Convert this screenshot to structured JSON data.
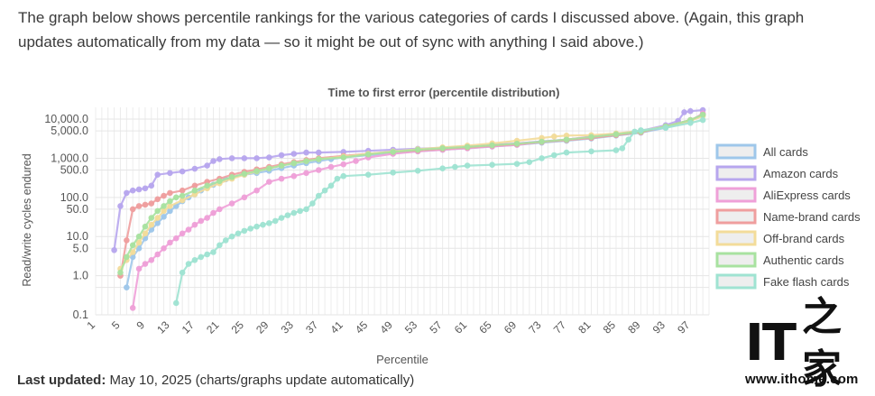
{
  "article": {
    "intro_text": "The graph below shows percentile rankings for the various categories of cards I discussed above. (Again, this graph updates automatically from my data — so it might be out of sync with anything I said above.)",
    "last_updated_label": "Last updated:",
    "last_updated_value": "May 10, 2025 (charts/graphs update automatically)"
  },
  "watermark": {
    "logo_text": "IT之家",
    "url": "www.ithome.com"
  },
  "chart_data": {
    "type": "line",
    "title": "Time to first error (percentile distribution)",
    "xlabel": "Percentile",
    "ylabel": "Read/write cycles endured",
    "y_scale": "log",
    "ylim": [
      0.1,
      20000
    ],
    "y_ticks": [
      "0.1",
      "1.0",
      "5.0",
      "10.0",
      "50.0",
      "100.0",
      "500.0",
      "1,000.0",
      "5,000.0",
      "10,000.0"
    ],
    "x_ticks": [
      "1",
      "5",
      "9",
      "13",
      "17",
      "21",
      "25",
      "29",
      "33",
      "37",
      "41",
      "45",
      "49",
      "53",
      "57",
      "61",
      "65",
      "69",
      "73",
      "77",
      "81",
      "85",
      "89",
      "93",
      "97"
    ],
    "grid": true,
    "legend_position": "right",
    "series": [
      {
        "name": "All cards",
        "color": "#9ec7ea",
        "points": [
          [
            6,
            0.5
          ],
          [
            7,
            3
          ],
          [
            8,
            5
          ],
          [
            9,
            9
          ],
          [
            10,
            15
          ],
          [
            11,
            22
          ],
          [
            12,
            32
          ],
          [
            13,
            45
          ],
          [
            14,
            60
          ],
          [
            15,
            80
          ],
          [
            16,
            100
          ],
          [
            17,
            120
          ],
          [
            18,
            150
          ],
          [
            19,
            180
          ],
          [
            20,
            210
          ],
          [
            21,
            250
          ],
          [
            22,
            290
          ],
          [
            23,
            330
          ],
          [
            25,
            380
          ],
          [
            27,
            420
          ],
          [
            29,
            480
          ],
          [
            31,
            560
          ],
          [
            33,
            650
          ],
          [
            35,
            750
          ],
          [
            37,
            850
          ],
          [
            39,
            950
          ],
          [
            41,
            1050
          ],
          [
            45,
            1200
          ],
          [
            49,
            1350
          ],
          [
            53,
            1500
          ],
          [
            57,
            1650
          ],
          [
            61,
            1800
          ],
          [
            65,
            2000
          ],
          [
            69,
            2200
          ],
          [
            73,
            2500
          ],
          [
            77,
            2800
          ],
          [
            81,
            3200
          ],
          [
            85,
            3800
          ],
          [
            89,
            4500
          ],
          [
            93,
            6000
          ],
          [
            97,
            9000
          ],
          [
            99,
            13000
          ]
        ]
      },
      {
        "name": "Amazon cards",
        "color": "#b7a6ee",
        "points": [
          [
            4,
            4.5
          ],
          [
            5,
            60
          ],
          [
            6,
            130
          ],
          [
            7,
            150
          ],
          [
            8,
            160
          ],
          [
            9,
            170
          ],
          [
            10,
            200
          ],
          [
            11,
            380
          ],
          [
            13,
            420
          ],
          [
            15,
            460
          ],
          [
            17,
            540
          ],
          [
            19,
            650
          ],
          [
            20,
            850
          ],
          [
            21,
            950
          ],
          [
            23,
            1000
          ],
          [
            25,
            1000
          ],
          [
            27,
            1000
          ],
          [
            29,
            1050
          ],
          [
            31,
            1200
          ],
          [
            33,
            1300
          ],
          [
            35,
            1400
          ],
          [
            37,
            1400
          ],
          [
            41,
            1450
          ],
          [
            45,
            1550
          ],
          [
            49,
            1650
          ],
          [
            53,
            1750
          ],
          [
            57,
            1850
          ],
          [
            61,
            2000
          ],
          [
            65,
            2200
          ],
          [
            69,
            2400
          ],
          [
            73,
            2700
          ],
          [
            77,
            3000
          ],
          [
            81,
            3500
          ],
          [
            85,
            4200
          ],
          [
            89,
            5000
          ],
          [
            93,
            7000
          ],
          [
            95,
            9000
          ],
          [
            96,
            15000
          ],
          [
            97,
            16000
          ],
          [
            99,
            17000
          ]
        ]
      },
      {
        "name": "AliExpress cards",
        "color": "#efa0d8",
        "points": [
          [
            7,
            0.15
          ],
          [
            8,
            1.5
          ],
          [
            9,
            2
          ],
          [
            10,
            2.5
          ],
          [
            11,
            3.5
          ],
          [
            12,
            5
          ],
          [
            13,
            7
          ],
          [
            14,
            9
          ],
          [
            15,
            12
          ],
          [
            16,
            15
          ],
          [
            17,
            20
          ],
          [
            18,
            25
          ],
          [
            19,
            30
          ],
          [
            20,
            40
          ],
          [
            21,
            50
          ],
          [
            23,
            70
          ],
          [
            25,
            100
          ],
          [
            27,
            150
          ],
          [
            29,
            250
          ],
          [
            31,
            300
          ],
          [
            33,
            350
          ],
          [
            35,
            420
          ],
          [
            37,
            500
          ],
          [
            39,
            600
          ],
          [
            41,
            700
          ],
          [
            43,
            850
          ],
          [
            45,
            1050
          ],
          [
            49,
            1300
          ],
          [
            53,
            1500
          ],
          [
            57,
            1650
          ],
          [
            61,
            1800
          ],
          [
            65,
            2000
          ],
          [
            69,
            2200
          ],
          [
            73,
            2600
          ],
          [
            77,
            3000
          ],
          [
            81,
            3600
          ],
          [
            85,
            4200
          ],
          [
            89,
            4800
          ],
          [
            93,
            6500
          ],
          [
            97,
            9000
          ],
          [
            99,
            14000
          ]
        ]
      },
      {
        "name": "Name-brand cards",
        "color": "#ef9e9e",
        "points": [
          [
            5,
            1
          ],
          [
            6,
            8
          ],
          [
            7,
            50
          ],
          [
            8,
            60
          ],
          [
            9,
            65
          ],
          [
            10,
            70
          ],
          [
            11,
            90
          ],
          [
            12,
            110
          ],
          [
            13,
            130
          ],
          [
            15,
            150
          ],
          [
            17,
            200
          ],
          [
            19,
            250
          ],
          [
            21,
            300
          ],
          [
            23,
            380
          ],
          [
            25,
            450
          ],
          [
            27,
            520
          ],
          [
            29,
            600
          ],
          [
            31,
            700
          ],
          [
            33,
            800
          ],
          [
            35,
            900
          ],
          [
            37,
            1000
          ],
          [
            41,
            1150
          ],
          [
            45,
            1300
          ],
          [
            49,
            1450
          ],
          [
            53,
            1600
          ],
          [
            57,
            1750
          ],
          [
            61,
            1900
          ],
          [
            65,
            2100
          ],
          [
            69,
            2300
          ],
          [
            73,
            2600
          ],
          [
            77,
            2900
          ],
          [
            81,
            3300
          ],
          [
            85,
            3900
          ],
          [
            89,
            4600
          ],
          [
            93,
            6500
          ],
          [
            97,
            9500
          ],
          [
            99,
            13000
          ]
        ]
      },
      {
        "name": "Off-brand cards",
        "color": "#f3dc9a",
        "points": [
          [
            5,
            1.5
          ],
          [
            6,
            2.5
          ],
          [
            7,
            4
          ],
          [
            8,
            7
          ],
          [
            9,
            12
          ],
          [
            10,
            20
          ],
          [
            11,
            30
          ],
          [
            12,
            45
          ],
          [
            13,
            60
          ],
          [
            15,
            85
          ],
          [
            17,
            120
          ],
          [
            19,
            170
          ],
          [
            21,
            230
          ],
          [
            23,
            300
          ],
          [
            25,
            380
          ],
          [
            27,
            460
          ],
          [
            29,
            550
          ],
          [
            31,
            650
          ],
          [
            33,
            750
          ],
          [
            35,
            850
          ],
          [
            37,
            950
          ],
          [
            41,
            1100
          ],
          [
            45,
            1300
          ],
          [
            49,
            1500
          ],
          [
            53,
            1700
          ],
          [
            57,
            1900
          ],
          [
            61,
            2100
          ],
          [
            65,
            2400
          ],
          [
            69,
            2800
          ],
          [
            73,
            3300
          ],
          [
            75,
            3600
          ],
          [
            77,
            3800
          ],
          [
            81,
            3900
          ],
          [
            85,
            4300
          ],
          [
            89,
            5000
          ],
          [
            93,
            6500
          ],
          [
            97,
            9000
          ],
          [
            99,
            12000
          ]
        ]
      },
      {
        "name": "Authentic cards",
        "color": "#a8e2a0",
        "points": [
          [
            5,
            1.2
          ],
          [
            6,
            3
          ],
          [
            7,
            6
          ],
          [
            8,
            10
          ],
          [
            9,
            18
          ],
          [
            10,
            30
          ],
          [
            11,
            45
          ],
          [
            12,
            60
          ],
          [
            13,
            80
          ],
          [
            14,
            100
          ],
          [
            15,
            110
          ],
          [
            17,
            150
          ],
          [
            19,
            200
          ],
          [
            21,
            260
          ],
          [
            23,
            330
          ],
          [
            25,
            400
          ],
          [
            27,
            470
          ],
          [
            29,
            550
          ],
          [
            31,
            650
          ],
          [
            33,
            750
          ],
          [
            35,
            850
          ],
          [
            37,
            950
          ],
          [
            41,
            1050
          ],
          [
            45,
            1250
          ],
          [
            49,
            1450
          ],
          [
            53,
            1650
          ],
          [
            57,
            1800
          ],
          [
            61,
            1950
          ],
          [
            65,
            2150
          ],
          [
            69,
            2350
          ],
          [
            73,
            2650
          ],
          [
            77,
            3000
          ],
          [
            81,
            3500
          ],
          [
            85,
            4100
          ],
          [
            89,
            4800
          ],
          [
            93,
            6500
          ],
          [
            97,
            9500
          ],
          [
            99,
            13000
          ]
        ]
      },
      {
        "name": "Fake flash cards",
        "color": "#9fe3d2",
        "points": [
          [
            14,
            0.2
          ],
          [
            15,
            1.2
          ],
          [
            16,
            2
          ],
          [
            17,
            2.5
          ],
          [
            18,
            3
          ],
          [
            19,
            3.5
          ],
          [
            20,
            4
          ],
          [
            21,
            6
          ],
          [
            22,
            8
          ],
          [
            23,
            10
          ],
          [
            24,
            12
          ],
          [
            25,
            14
          ],
          [
            26,
            16
          ],
          [
            27,
            18
          ],
          [
            28,
            20
          ],
          [
            29,
            22
          ],
          [
            30,
            25
          ],
          [
            31,
            30
          ],
          [
            32,
            35
          ],
          [
            33,
            40
          ],
          [
            34,
            45
          ],
          [
            35,
            50
          ],
          [
            36,
            70
          ],
          [
            37,
            110
          ],
          [
            38,
            150
          ],
          [
            39,
            200
          ],
          [
            40,
            300
          ],
          [
            41,
            350
          ],
          [
            45,
            380
          ],
          [
            49,
            430
          ],
          [
            53,
            480
          ],
          [
            57,
            550
          ],
          [
            59,
            600
          ],
          [
            61,
            650
          ],
          [
            65,
            680
          ],
          [
            69,
            720
          ],
          [
            71,
            800
          ],
          [
            73,
            1000
          ],
          [
            75,
            1200
          ],
          [
            77,
            1400
          ],
          [
            81,
            1500
          ],
          [
            85,
            1600
          ],
          [
            86,
            1800
          ],
          [
            87,
            3000
          ],
          [
            88,
            4800
          ],
          [
            89,
            5200
          ],
          [
            93,
            6000
          ],
          [
            97,
            8000
          ],
          [
            99,
            9500
          ]
        ]
      }
    ]
  }
}
